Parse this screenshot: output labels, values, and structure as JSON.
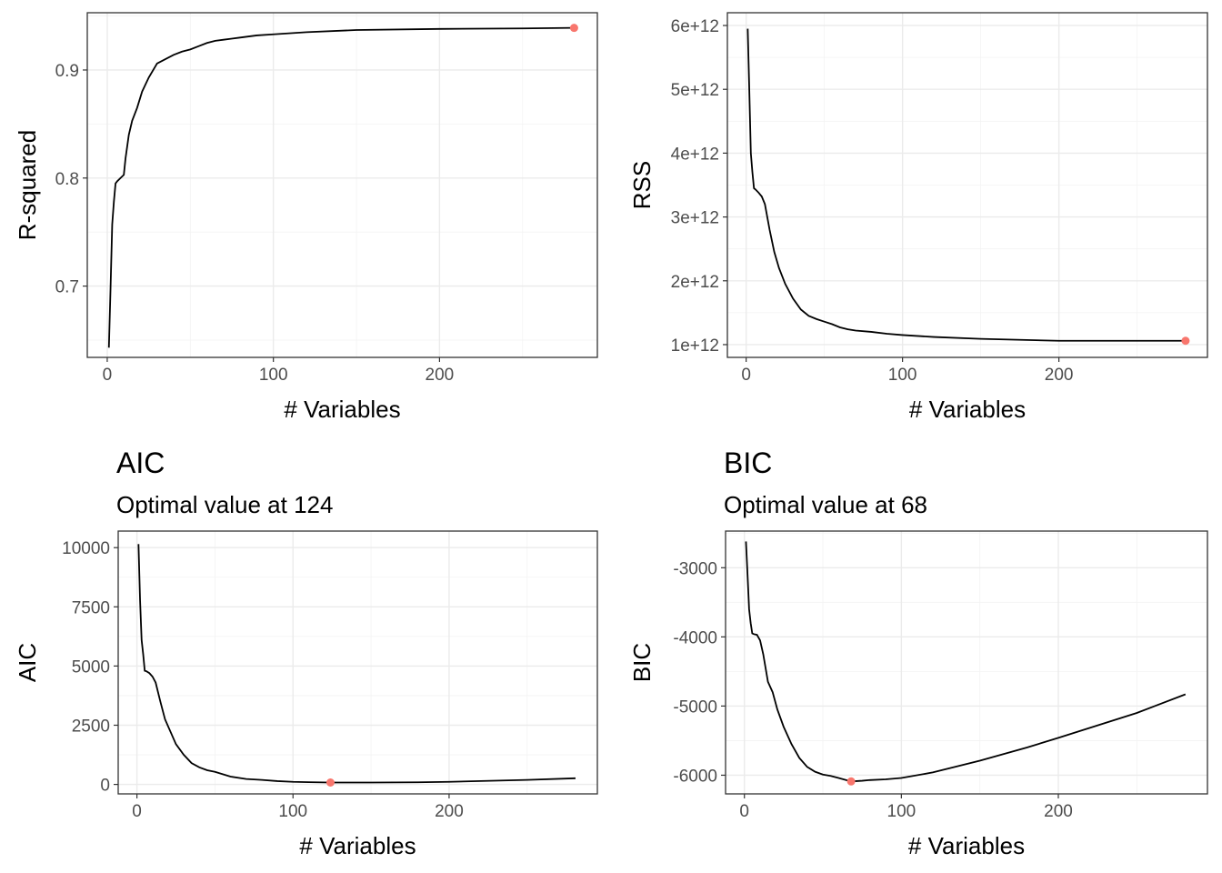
{
  "chart_data": [
    {
      "id": "rsq",
      "type": "line",
      "title": "",
      "subtitle": "",
      "xlabel": "# Variables",
      "ylabel": "R-squared",
      "xlim": [
        -12,
        295
      ],
      "ylim": [
        0.634,
        0.953
      ],
      "x_ticks": [
        0,
        100,
        200
      ],
      "x_tick_labels": [
        "0",
        "100",
        "200"
      ],
      "y_ticks": [
        0.7,
        0.8,
        0.9
      ],
      "y_tick_labels": [
        "0.7",
        "0.8",
        "0.9"
      ],
      "grid": true,
      "highlight_color": "#F8766D",
      "series": [
        {
          "x": [
            1,
            2,
            3,
            4,
            5,
            6,
            8,
            10,
            11,
            13,
            15,
            18,
            21,
            25,
            30,
            35,
            40,
            45,
            50,
            55,
            60,
            65,
            70,
            80,
            90,
            100,
            120,
            150,
            200,
            250,
            281
          ],
          "y": [
            0.643,
            0.698,
            0.757,
            0.778,
            0.795,
            0.797,
            0.8,
            0.803,
            0.818,
            0.84,
            0.853,
            0.865,
            0.88,
            0.893,
            0.906,
            0.91,
            0.914,
            0.917,
            0.919,
            0.922,
            0.925,
            0.927,
            0.928,
            0.93,
            0.932,
            0.933,
            0.935,
            0.937,
            0.938,
            0.9385,
            0.939
          ]
        }
      ],
      "highlight": {
        "x": 281,
        "y": 0.939
      }
    },
    {
      "id": "rss",
      "type": "line",
      "title": "",
      "subtitle": "",
      "xlabel": "# Variables",
      "ylabel": "RSS",
      "xlim": [
        -12,
        295
      ],
      "ylim": [
        800000000000.0,
        6200000000000.0
      ],
      "x_ticks": [
        0,
        100,
        200
      ],
      "x_tick_labels": [
        "0",
        "100",
        "200"
      ],
      "y_ticks": [
        1000000000000.0,
        2000000000000.0,
        3000000000000.0,
        4000000000000.0,
        5000000000000.0,
        6000000000000.0
      ],
      "y_tick_labels": [
        "1e+12",
        "2e+12",
        "3e+12",
        "4e+12",
        "5e+12",
        "6e+12"
      ],
      "grid": true,
      "highlight_color": "#F8766D",
      "series": [
        {
          "x": [
            1,
            2,
            3,
            4,
            5,
            6,
            8,
            10,
            12,
            15,
            18,
            21,
            25,
            30,
            35,
            40,
            45,
            50,
            55,
            60,
            65,
            70,
            80,
            90,
            100,
            120,
            150,
            200,
            250,
            281
          ],
          "y": [
            5950000000000.0,
            5000000000000.0,
            4000000000000.0,
            3700000000000.0,
            3450000000000.0,
            3430000000000.0,
            3380000000000.0,
            3320000000000.0,
            3200000000000.0,
            2800000000000.0,
            2450000000000.0,
            2200000000000.0,
            1950000000000.0,
            1720000000000.0,
            1550000000000.0,
            1450000000000.0,
            1400000000000.0,
            1360000000000.0,
            1320000000000.0,
            1270000000000.0,
            1240000000000.0,
            1220000000000.0,
            1200000000000.0,
            1170000000000.0,
            1150000000000.0,
            1120000000000.0,
            1090000000000.0,
            1060000000000.0,
            1060000000000.0,
            1060000000000.0
          ]
        }
      ],
      "highlight": {
        "x": 281,
        "y": 1060000000000.0
      }
    },
    {
      "id": "aic",
      "type": "line",
      "title": "AIC",
      "subtitle": "Optimal value at 124",
      "xlabel": "# Variables",
      "ylabel": "AIC",
      "xlim": [
        -12,
        295
      ],
      "ylim": [
        -400,
        10700
      ],
      "x_ticks": [
        0,
        100,
        200
      ],
      "x_tick_labels": [
        "0",
        "100",
        "200"
      ],
      "y_ticks": [
        0,
        2500,
        5000,
        7500,
        10000
      ],
      "y_tick_labels": [
        "0",
        "2500",
        "5000",
        "7500",
        "10000"
      ],
      "grid": true,
      "highlight_color": "#F8766D",
      "series": [
        {
          "x": [
            1,
            2,
            3,
            4,
            5,
            6,
            8,
            10,
            12,
            15,
            18,
            21,
            25,
            30,
            35,
            40,
            45,
            50,
            55,
            60,
            70,
            80,
            90,
            100,
            110,
            124,
            150,
            180,
            200,
            250,
            281
          ],
          "y": [
            10150,
            7800,
            6100,
            5500,
            4800,
            4780,
            4700,
            4550,
            4300,
            3500,
            2750,
            2300,
            1700,
            1250,
            900,
            720,
            600,
            530,
            430,
            330,
            230,
            190,
            140,
            110,
            95,
            80,
            80,
            90,
            110,
            190,
            260
          ]
        }
      ],
      "highlight": {
        "x": 124,
        "y": 80
      }
    },
    {
      "id": "bic",
      "type": "line",
      "title": "BIC",
      "subtitle": "Optimal value at 68",
      "xlabel": "# Variables",
      "ylabel": "BIC",
      "xlim": [
        -12,
        295
      ],
      "ylim": [
        -6270,
        -2470
      ],
      "x_ticks": [
        0,
        100,
        200
      ],
      "x_tick_labels": [
        "0",
        "100",
        "200"
      ],
      "y_ticks": [
        -6000,
        -5000,
        -4000,
        -3000
      ],
      "y_tick_labels": [
        "-6000",
        "-5000",
        "-4000",
        "-3000"
      ],
      "grid": true,
      "highlight_color": "#F8766D",
      "series": [
        {
          "x": [
            1,
            2,
            3,
            4,
            5,
            6,
            8,
            10,
            12,
            15,
            18,
            21,
            25,
            30,
            35,
            40,
            45,
            50,
            55,
            60,
            68,
            75,
            80,
            90,
            100,
            120,
            150,
            180,
            200,
            250,
            281
          ],
          "y": [
            -2620,
            -3100,
            -3600,
            -3800,
            -3950,
            -3960,
            -3970,
            -4050,
            -4250,
            -4650,
            -4800,
            -5050,
            -5300,
            -5550,
            -5750,
            -5880,
            -5950,
            -5990,
            -6010,
            -6040,
            -6090,
            -6080,
            -6070,
            -6060,
            -6040,
            -5960,
            -5790,
            -5600,
            -5460,
            -5100,
            -4830
          ]
        }
      ],
      "highlight": {
        "x": 68,
        "y": -6090
      }
    }
  ]
}
